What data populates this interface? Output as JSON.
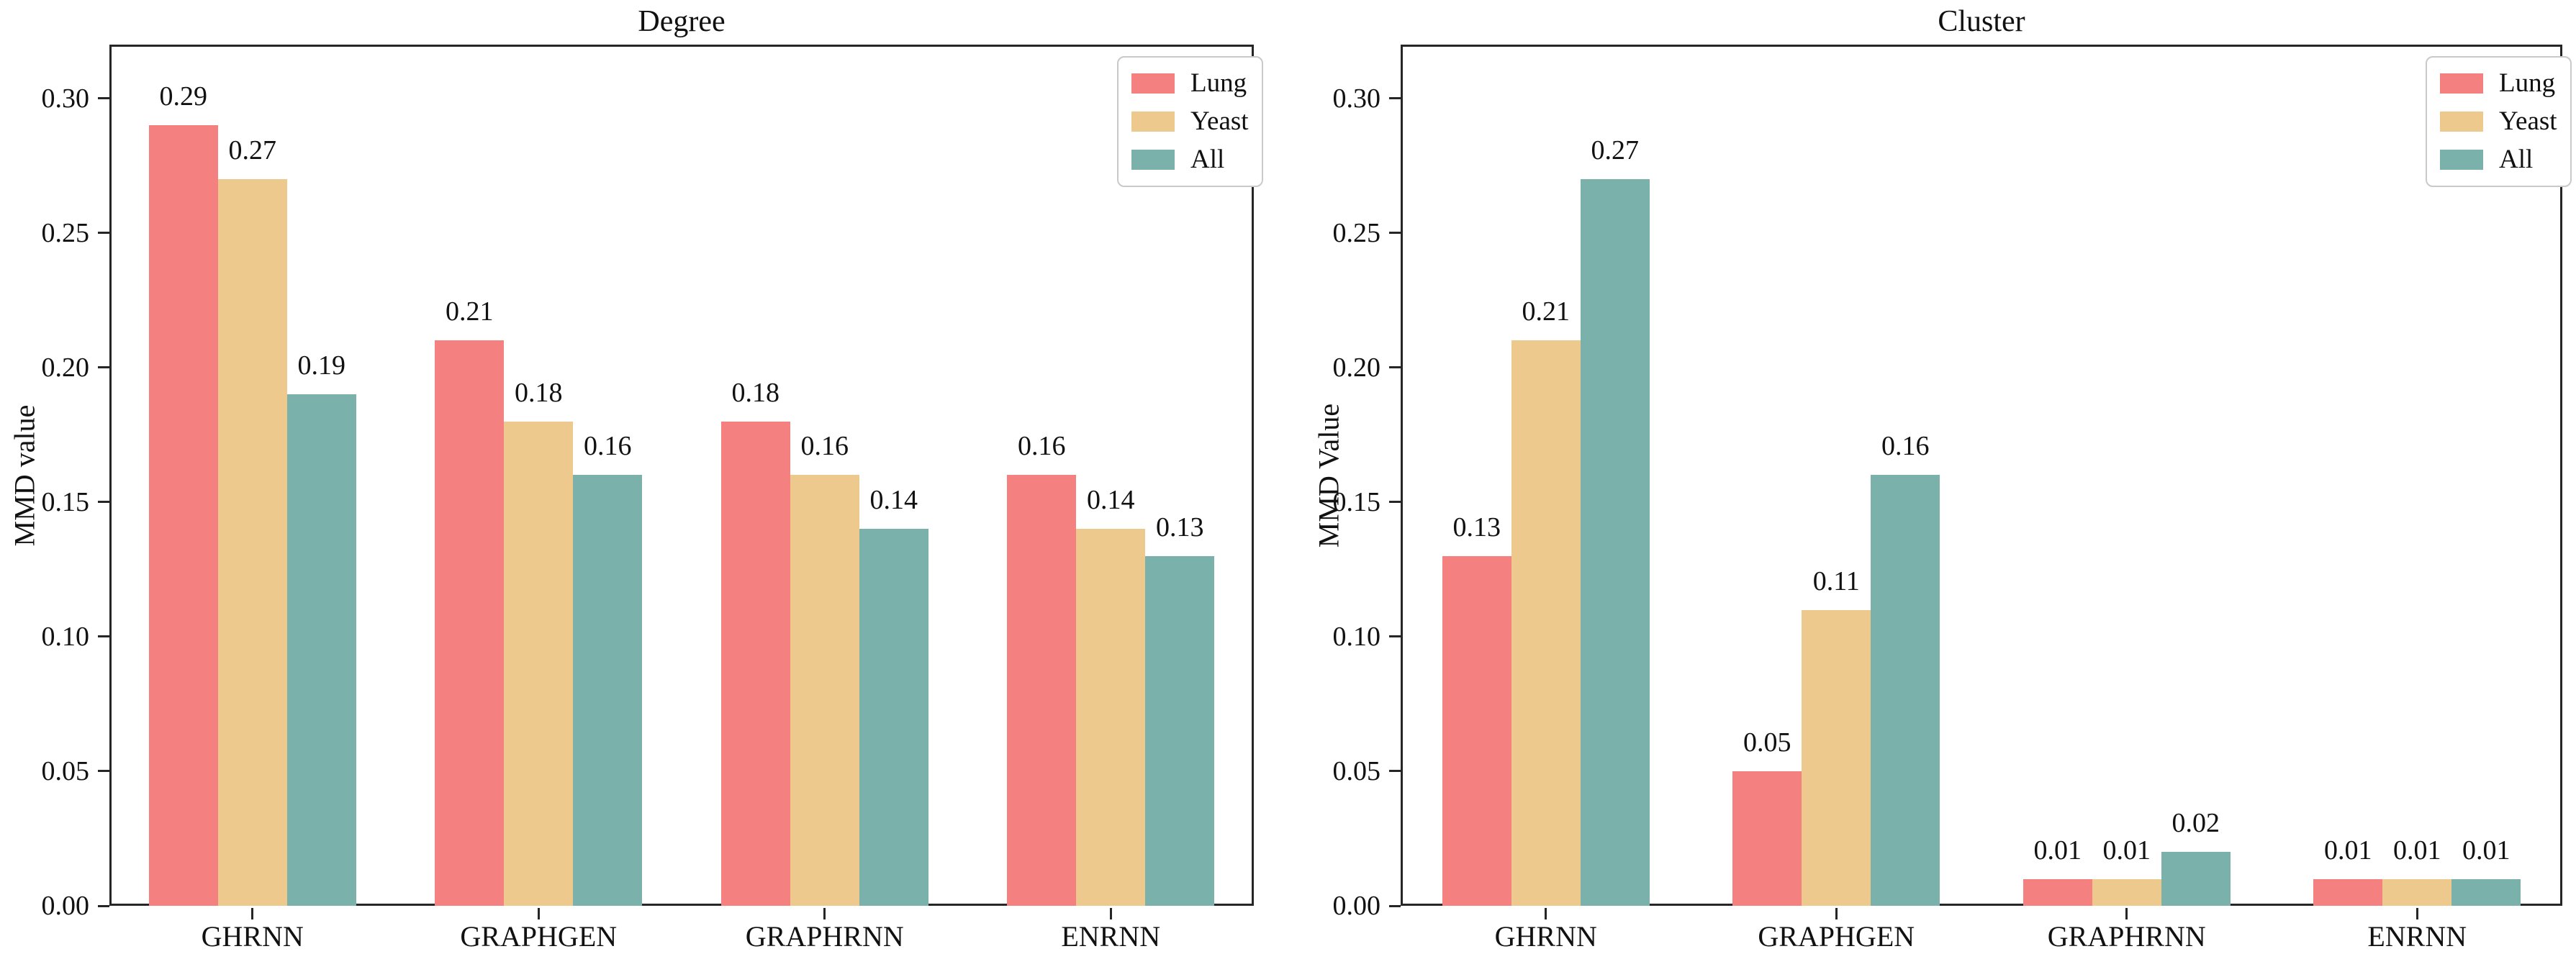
{
  "figure": {
    "background": "#ffffff",
    "text_color": "#111111",
    "axis_color": "#262626",
    "legend_border_color": "#c9c9c9"
  },
  "chart_data": [
    {
      "type": "bar",
      "title": "Degree",
      "xlabel": "",
      "ylabel": "MMD value",
      "categories": [
        "GHRNN",
        "GRAPHGEN",
        "GRAPHRNN",
        "ENRNN"
      ],
      "series": [
        {
          "name": "Lung",
          "color": "#F4817F",
          "values": [
            0.29,
            0.21,
            0.18,
            0.16
          ]
        },
        {
          "name": "Yeast",
          "color": "#EDC98D",
          "values": [
            0.27,
            0.18,
            0.16,
            0.14
          ]
        },
        {
          "name": "All",
          "color": "#7AB1AB",
          "values": [
            0.19,
            0.16,
            0.14,
            0.13
          ]
        }
      ],
      "yticks": [
        "0.00",
        "0.05",
        "0.10",
        "0.15",
        "0.20",
        "0.25",
        "0.30"
      ],
      "ylim": [
        0,
        0.32
      ],
      "grid": false,
      "bar_value_labels": true,
      "legend_position": "upper right"
    },
    {
      "type": "bar",
      "title": "Cluster",
      "xlabel": "",
      "ylabel": "MMD Value",
      "categories": [
        "GHRNN",
        "GRAPHGEN",
        "GRAPHRNN",
        "ENRNN"
      ],
      "series": [
        {
          "name": "Lung",
          "color": "#F4817F",
          "values": [
            0.13,
            0.05,
            0.01,
            0.01
          ]
        },
        {
          "name": "Yeast",
          "color": "#EDC98D",
          "values": [
            0.21,
            0.11,
            0.01,
            0.01
          ]
        },
        {
          "name": "All",
          "color": "#7AB1AB",
          "values": [
            0.27,
            0.16,
            0.02,
            0.01
          ]
        }
      ],
      "yticks": [
        "0.00",
        "0.05",
        "0.10",
        "0.15",
        "0.20",
        "0.25",
        "0.30"
      ],
      "ylim": [
        0,
        0.32
      ],
      "grid": false,
      "bar_value_labels": true,
      "legend_position": "upper right"
    }
  ]
}
